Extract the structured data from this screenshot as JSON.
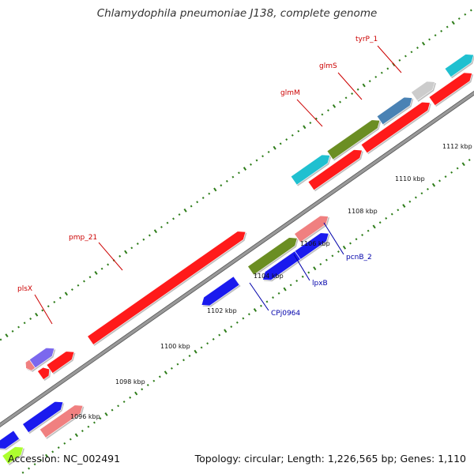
{
  "title": "Chlamydophila pneumoniae J138, complete genome",
  "footer": {
    "accession_label": "Accession:",
    "accession": "NC_002491",
    "summary": "Topology: circular; Length: 1,226,565 bp; Genes: 1,110"
  },
  "colors": {
    "backbone": "#999999",
    "tick_dot": "#2e7d1a",
    "red": "#ff1a1a",
    "blue": "#1a1aee",
    "pink": "#f08080",
    "olive": "#6b8e23",
    "cyan": "#20c0d0",
    "steelblue": "#4a82b4",
    "lightgray": "#cccccc",
    "purple": "#7b68ee",
    "lime": "#adff2f",
    "label_red": "#cc0000",
    "label_blue": "#0000aa"
  },
  "kbp_ticks": [
    {
      "label": "1096 kbp"
    },
    {
      "label": "1098 kbp"
    },
    {
      "label": "1100 kbp"
    },
    {
      "label": "1102 kbp"
    },
    {
      "label": "1104 kbp"
    },
    {
      "label": "1106 kbp"
    },
    {
      "label": "1108 kbp"
    },
    {
      "label": "1110 kbp"
    },
    {
      "label": "1112 kbp"
    }
  ],
  "gene_labels": [
    {
      "text": "plsX",
      "color": "red"
    },
    {
      "text": "pmp_21",
      "color": "red"
    },
    {
      "text": "glmM",
      "color": "red"
    },
    {
      "text": "glmS",
      "color": "red"
    },
    {
      "text": "tyrP_1",
      "color": "red"
    },
    {
      "text": "CPj0964",
      "color": "blue"
    },
    {
      "text": "lpxB",
      "color": "blue"
    },
    {
      "text": "pcnB_2",
      "color": "blue"
    }
  ]
}
